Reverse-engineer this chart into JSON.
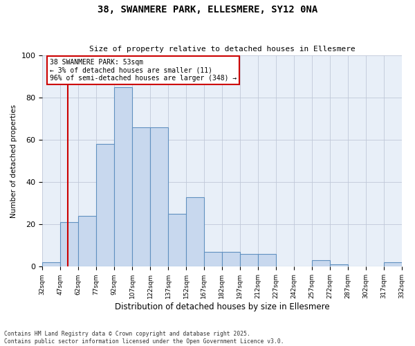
{
  "title": "38, SWANMERE PARK, ELLESMERE, SY12 0NA",
  "subtitle": "Size of property relative to detached houses in Ellesmere",
  "xlabel": "Distribution of detached houses by size in Ellesmere",
  "ylabel": "Number of detached properties",
  "annotation_line1": "38 SWANMERE PARK: 53sqm",
  "annotation_line2": "← 3% of detached houses are smaller (11)",
  "annotation_line3": "96% of semi-detached houses are larger (348) →",
  "property_size_sqm": 53,
  "bar_color": "#c8d8ee",
  "bar_edge_color": "#6090c0",
  "marker_color": "#cc0000",
  "background_color": "#e8eff8",
  "footnote1": "Contains HM Land Registry data © Crown copyright and database right 2025.",
  "footnote2": "Contains public sector information licensed under the Open Government Licence v3.0.",
  "bin_edges": [
    32,
    47,
    62,
    77,
    92,
    107,
    122,
    137,
    152,
    167,
    182,
    197,
    212,
    227,
    242,
    257,
    272,
    287,
    302,
    317,
    332
  ],
  "counts": [
    2,
    21,
    24,
    58,
    85,
    66,
    66,
    25,
    33,
    7,
    7,
    6,
    6,
    0,
    0,
    3,
    1,
    0,
    0,
    2
  ],
  "ylim": [
    0,
    100
  ],
  "yticks": [
    0,
    20,
    40,
    60,
    80,
    100
  ]
}
